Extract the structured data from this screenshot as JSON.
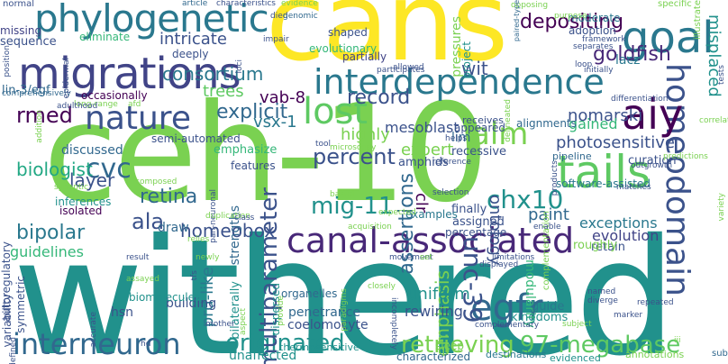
{
  "words": [
    {
      "text": "withered",
      "color": "#21918c"
    },
    {
      "text": "ceh-10",
      "color": "#7ad151"
    },
    {
      "text": "cans",
      "color": "#fde725"
    },
    {
      "text": "migrations",
      "color": "#414487"
    },
    {
      "text": "interdependence",
      "color": "#2a788e"
    },
    {
      "text": "canal-associated",
      "color": "#482878"
    },
    {
      "text": "phylogenetic",
      "color": "#2a788e"
    },
    {
      "text": "homeodomain",
      "color": "#3b528b"
    },
    {
      "text": "tails",
      "color": "#5ec962"
    },
    {
      "text": "aiy",
      "color": "#440154"
    },
    {
      "text": "goal",
      "color": "#2a788e"
    },
    {
      "text": "interneuron",
      "color": "#31688e"
    },
    {
      "text": "originated",
      "color": "#21918c"
    },
    {
      "text": "retrieving",
      "color": "#7ad151"
    },
    {
      "text": "97-megabase",
      "color": "#5ec962"
    },
    {
      "text": "nature",
      "color": "#3b528b"
    },
    {
      "text": "lost",
      "color": "#5ec962"
    },
    {
      "text": "mig-11",
      "color": "#21918c"
    },
    {
      "text": "egfr",
      "color": "#31688e"
    },
    {
      "text": "unc-39",
      "color": "#3b528b"
    },
    {
      "text": "chx10",
      "color": "#21918c"
    },
    {
      "text": "alm",
      "color": "#7ad151"
    },
    {
      "text": "cvc",
      "color": "#31688e"
    },
    {
      "text": "percent",
      "color": "#3b528b"
    },
    {
      "text": "explicit",
      "color": "#31688e"
    },
    {
      "text": "record",
      "color": "#3b528b"
    },
    {
      "text": "goldfish",
      "color": "#482878"
    },
    {
      "text": "depositing",
      "color": "#440154"
    },
    {
      "text": "multiparameter",
      "color": "#3b528b"
    },
    {
      "text": "assertions",
      "color": "#31688e"
    },
    {
      "text": "homeobox",
      "color": "#3b528b"
    },
    {
      "text": "ala",
      "color": "#3b528b"
    },
    {
      "text": "retina",
      "color": "#31688e"
    },
    {
      "text": "layer",
      "color": "#3b528b"
    },
    {
      "text": "biologist",
      "color": "#22a884"
    },
    {
      "text": "rmed",
      "color": "#440154"
    },
    {
      "text": "bipolar",
      "color": "#2a788e"
    },
    {
      "text": "guidelines",
      "color": "#35b779"
    },
    {
      "text": "consortium",
      "color": "#2a788e"
    },
    {
      "text": "intricate",
      "color": "#3b528b"
    },
    {
      "text": "trees",
      "color": "#5ec962"
    },
    {
      "text": "vab-8",
      "color": "#440154"
    },
    {
      "text": "vsx-1",
      "color": "#2a788e"
    },
    {
      "text": "mesoblast",
      "color": "#3b528b"
    },
    {
      "text": "expert",
      "color": "#7ad151"
    },
    {
      "text": "highly",
      "color": "#7ad151"
    },
    {
      "text": "lim",
      "color": "#31688e"
    },
    {
      "text": "nomarski",
      "color": "#3b528b"
    },
    {
      "text": "gained",
      "color": "#35b779"
    },
    {
      "text": "photosensitive",
      "color": "#3b528b"
    },
    {
      "text": "ontology",
      "color": "#3b528b"
    },
    {
      "text": "paint",
      "color": "#31688e"
    },
    {
      "text": "emphasis",
      "color": "#7ad151"
    },
    {
      "text": "uniform",
      "color": "#21918c"
    },
    {
      "text": "rewiring",
      "color": "#3b528b"
    },
    {
      "text": "exceptions",
      "color": "#2a788e"
    },
    {
      "text": "evolution",
      "color": "#414487"
    },
    {
      "text": "alignments",
      "color": "#31688e"
    },
    {
      "text": "prd-like",
      "color": "#2a788e"
    },
    {
      "text": "clr",
      "color": "#440154"
    },
    {
      "text": "wit",
      "color": "#3b528b"
    },
    {
      "text": "misplaced",
      "color": "#21918c"
    },
    {
      "text": "lacz",
      "color": "#2a788e"
    },
    {
      "text": "modularity",
      "color": "#35b779"
    },
    {
      "text": "kingdoms",
      "color": "#21918c"
    },
    {
      "text": "penetrance",
      "color": "#31688e"
    },
    {
      "text": "coelomocyte",
      "color": "#3b528b"
    },
    {
      "text": "hsn",
      "color": "#3b528b"
    },
    {
      "text": "building",
      "color": "#3b528b"
    },
    {
      "text": "biomolecules",
      "color": "#21918c"
    },
    {
      "text": "bilaterally",
      "color": "#21918c"
    },
    {
      "text": "dispersed",
      "color": "#21918c"
    },
    {
      "text": "sleep",
      "color": "#7ad151"
    },
    {
      "text": "unaffected",
      "color": "#21918c"
    },
    {
      "text": "thermosensitive",
      "color": "#21918c"
    },
    {
      "text": "characterized",
      "color": "#31688e"
    },
    {
      "text": "destinations",
      "color": "#2a788e"
    },
    {
      "text": "evidenced",
      "color": "#21918c"
    },
    {
      "text": "annotations",
      "color": "#7ad151"
    },
    {
      "text": "guide",
      "color": "#2a788e"
    },
    {
      "text": "retain",
      "color": "#3b528b"
    },
    {
      "text": "roughly",
      "color": "#7ad151"
    },
    {
      "text": "curation",
      "color": "#3b528b"
    },
    {
      "text": "amphids",
      "color": "#3b528b"
    },
    {
      "text": "draw",
      "color": "#31688e"
    },
    {
      "text": "strengths",
      "color": "#31688e"
    },
    {
      "text": "organelles",
      "color": "#31688e"
    },
    {
      "text": "emphasize",
      "color": "#35b779"
    },
    {
      "text": "features",
      "color": "#3b528b"
    },
    {
      "text": "semi-automated",
      "color": "#3b528b"
    },
    {
      "text": "discussed",
      "color": "#31688e"
    },
    {
      "text": "occasionally",
      "color": "#440154"
    },
    {
      "text": "isolated",
      "color": "#440154"
    },
    {
      "text": "inferences",
      "color": "#21918c"
    },
    {
      "text": "autoregulatory",
      "color": "#3b528b"
    },
    {
      "text": "symmetric",
      "color": "#3b528b"
    },
    {
      "text": "variability",
      "color": "#3b528b"
    },
    {
      "text": "lin-3/egf",
      "color": "#31688e"
    },
    {
      "text": "sequence",
      "color": "#3b528b"
    },
    {
      "text": "missing",
      "color": "#414487"
    },
    {
      "text": "eliminate",
      "color": "#35b779"
    },
    {
      "text": "deeply",
      "color": "#3b528b"
    },
    {
      "text": "evolutionary",
      "color": "#35b779"
    },
    {
      "text": "pressures",
      "color": "#7ad151"
    },
    {
      "text": "shaped",
      "color": "#3b528b"
    },
    {
      "text": "partially",
      "color": "#414487"
    },
    {
      "text": "project",
      "color": "#21918c"
    },
    {
      "text": "receives",
      "color": "#3b528b"
    },
    {
      "text": "appeared",
      "color": "#3b528b"
    },
    {
      "text": "recessive",
      "color": "#3b528b"
    },
    {
      "text": "finally",
      "color": "#3b528b"
    },
    {
      "text": "assigned",
      "color": "#3b528b"
    },
    {
      "text": "percentage",
      "color": "#3b528b"
    },
    {
      "text": "examples",
      "color": "#2a788e"
    },
    {
      "text": "software-assisted",
      "color": "#2a788e"
    },
    {
      "text": "pipeline",
      "color": "#31688e"
    },
    {
      "text": "complementation",
      "color": "#7ad151"
    },
    {
      "text": "moderate",
      "color": "#2a788e"
    },
    {
      "text": "adoption",
      "color": "#3b528b"
    },
    {
      "text": "specific",
      "color": "#7ad151"
    },
    {
      "text": "illustrate",
      "color": "#7ad151"
    },
    {
      "text": "normal",
      "color": "#3b528b"
    },
    {
      "text": "position",
      "color": "#3b528b"
    },
    {
      "text": "article",
      "color": "#31688e"
    },
    {
      "text": "characteristics",
      "color": "#3b528b"
    },
    {
      "text": "evidence",
      "color": "#7ad151"
    },
    {
      "text": "died",
      "color": "#3b528b"
    },
    {
      "text": "genomic",
      "color": "#31688e"
    },
    {
      "text": "impair",
      "color": "#3b528b"
    },
    {
      "text": "opposing",
      "color": "#7ad151"
    },
    {
      "text": "paired-type",
      "color": "#31688e"
    },
    {
      "text": "purpose",
      "color": "#7ad151"
    },
    {
      "text": "separates",
      "color": "#3b528b"
    },
    {
      "text": "framework",
      "color": "#3b528b"
    },
    {
      "text": "loop",
      "color": "#3b528b"
    },
    {
      "text": "initially",
      "color": "#3b528b"
    },
    {
      "text": "participates",
      "color": "#3b528b"
    },
    {
      "text": "allowed",
      "color": "#3b528b"
    },
    {
      "text": "comprehensively",
      "color": "#31688e"
    },
    {
      "text": "long-range",
      "color": "#7ad151"
    },
    {
      "text": "adulthood",
      "color": "#3b528b"
    },
    {
      "text": "afd",
      "color": "#7ad151"
    },
    {
      "text": "delineated",
      "color": "#7ad151"
    },
    {
      "text": "differentiation",
      "color": "#3b528b"
    },
    {
      "text": "correlations",
      "color": "#7ad151"
    },
    {
      "text": "helps",
      "color": "#3b528b"
    },
    {
      "text": "microscopy",
      "color": "#7ad151"
    },
    {
      "text": "reference",
      "color": "#3b528b"
    },
    {
      "text": "tool",
      "color": "#3b528b"
    },
    {
      "text": "addition",
      "color": "#7ad151"
    },
    {
      "text": "composed",
      "color": "#7ad151"
    },
    {
      "text": "synaptic",
      "color": "#7ad151"
    },
    {
      "text": "predictions",
      "color": "#7ad151"
    },
    {
      "text": "outgrowth",
      "color": "#3b528b"
    },
    {
      "text": "pan-neuronal",
      "color": "#3b528b"
    },
    {
      "text": "duplication",
      "color": "#7ad151"
    },
    {
      "text": "class",
      "color": "#3b528b"
    },
    {
      "text": "based",
      "color": "#7ad151"
    },
    {
      "text": "expected",
      "color": "#7ad151"
    },
    {
      "text": "matches",
      "color": "#3b528b"
    },
    {
      "text": "selection",
      "color": "#3b528b"
    },
    {
      "text": "products",
      "color": "#3b528b"
    },
    {
      "text": "acquisition",
      "color": "#7ad151"
    },
    {
      "text": "enable",
      "color": "#3b528b"
    },
    {
      "text": "relies",
      "color": "#7ad151"
    },
    {
      "text": "result",
      "color": "#3b528b"
    },
    {
      "text": "newly",
      "color": "#7ad151"
    },
    {
      "text": "movement",
      "color": "#3b528b"
    },
    {
      "text": "set",
      "color": "#7ad151"
    },
    {
      "text": "limitations",
      "color": "#3b528b"
    },
    {
      "text": "displayed",
      "color": "#3b528b"
    },
    {
      "text": "assayed",
      "color": "#7ad151"
    },
    {
      "text": "tfs",
      "color": "#3b528b"
    },
    {
      "text": "closely",
      "color": "#7ad151"
    },
    {
      "text": "named",
      "color": "#3b528b"
    },
    {
      "text": "diverge",
      "color": "#3b528b"
    },
    {
      "text": "repeated",
      "color": "#3b528b"
    },
    {
      "text": "marker",
      "color": "#3b528b"
    },
    {
      "text": "iii",
      "color": "#7ad151"
    },
    {
      "text": "subtype",
      "color": "#31688e"
    },
    {
      "text": "hd",
      "color": "#3b528b"
    },
    {
      "text": "mother",
      "color": "#3b528b"
    },
    {
      "text": "accurate",
      "color": "#3b528b"
    },
    {
      "text": "defined",
      "color": "#3b528b"
    },
    {
      "text": "aspect",
      "color": "#7ad151"
    },
    {
      "text": "provide",
      "color": "#7ad151"
    },
    {
      "text": "paradigms",
      "color": "#7ad151"
    },
    {
      "text": "incompletely",
      "color": "#3b528b"
    },
    {
      "text": "complementary",
      "color": "#3b528b"
    },
    {
      "text": "subject",
      "color": "#7ad151"
    },
    {
      "text": "epidermal",
      "color": "#3b528b"
    },
    {
      "text": "loci",
      "color": "#3b528b"
    },
    {
      "text": "tests",
      "color": "#3b528b"
    },
    {
      "text": "variety",
      "color": "#7ad151"
    },
    {
      "text": "direction",
      "color": "#3b528b"
    }
  ]
}
